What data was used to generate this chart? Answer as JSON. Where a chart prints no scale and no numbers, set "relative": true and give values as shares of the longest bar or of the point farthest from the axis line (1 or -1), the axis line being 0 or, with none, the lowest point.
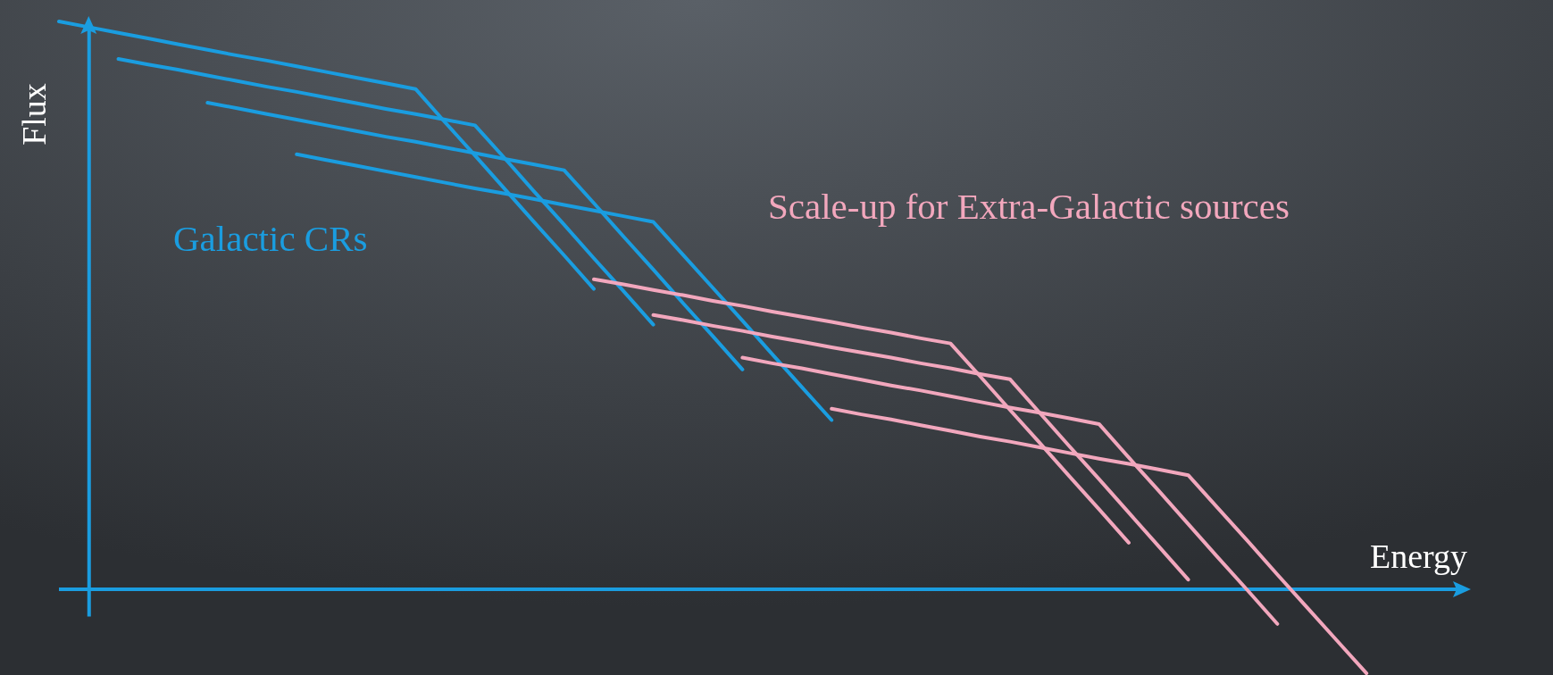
{
  "chart_data": {
    "type": "line",
    "relative": true,
    "xlabel": "Energy",
    "ylabel": "Flux",
    "marker": "none",
    "line_style": "solid",
    "ref_lines": [
      {
        "axis": "y",
        "value": 0,
        "color": "#1a9de0"
      }
    ],
    "categories": [
      null,
      null,
      null,
      null,
      null,
      null,
      null,
      null,
      null,
      null,
      null,
      null,
      null,
      null,
      null,
      null,
      null,
      null,
      null,
      null,
      null,
      null,
      null,
      null,
      null,
      null,
      null,
      null,
      null,
      null,
      null,
      null,
      null,
      null,
      null,
      null,
      null,
      null,
      null,
      null,
      null,
      null,
      null,
      null,
      null,
      null,
      null,
      null
    ],
    "series": [
      {
        "color": "#1a9de0",
        "values": [
          1.0,
          0.99,
          0.98,
          0.97,
          0.96,
          0.95,
          0.94,
          0.931,
          0.921,
          0.911,
          0.901,
          0.891,
          0.881,
          0.822,
          0.764,
          0.705,
          0.646,
          0.588,
          0.529,
          null,
          null,
          null,
          null,
          null,
          null,
          null,
          null,
          null,
          null,
          null,
          null,
          null,
          null,
          null,
          null,
          null,
          null,
          null,
          null,
          null,
          null,
          null,
          null,
          null,
          null,
          null,
          null,
          null
        ]
      },
      {
        "color": "#1a9de0",
        "values": [
          null,
          null,
          0.934,
          0.924,
          0.915,
          0.905,
          0.895,
          0.885,
          0.876,
          0.866,
          0.856,
          0.846,
          0.837,
          0.827,
          0.817,
          0.759,
          0.7,
          0.642,
          0.583,
          0.525,
          0.466,
          null,
          null,
          null,
          null,
          null,
          null,
          null,
          null,
          null,
          null,
          null,
          null,
          null,
          null,
          null,
          null,
          null,
          null,
          null,
          null,
          null,
          null,
          null,
          null,
          null,
          null,
          null
        ]
      },
      {
        "color": "#1a9de0",
        "values": [
          null,
          null,
          null,
          null,
          null,
          0.857,
          0.847,
          0.837,
          0.827,
          0.817,
          0.807,
          0.797,
          0.788,
          0.778,
          0.768,
          0.758,
          0.748,
          0.738,
          0.68,
          0.621,
          0.563,
          0.504,
          0.446,
          0.387,
          null,
          null,
          null,
          null,
          null,
          null,
          null,
          null,
          null,
          null,
          null,
          null,
          null,
          null,
          null,
          null,
          null,
          null,
          null,
          null,
          null,
          null,
          null,
          null
        ]
      },
      {
        "color": "#1a9de0",
        "values": [
          null,
          null,
          null,
          null,
          null,
          null,
          null,
          null,
          0.766,
          0.756,
          0.746,
          0.736,
          0.726,
          0.716,
          0.706,
          0.697,
          0.687,
          0.677,
          0.667,
          0.657,
          0.647,
          0.589,
          0.531,
          0.473,
          0.414,
          0.356,
          0.298,
          null,
          null,
          null,
          null,
          null,
          null,
          null,
          null,
          null,
          null,
          null,
          null,
          null,
          null,
          null,
          null,
          null,
          null,
          null,
          null,
          null
        ]
      },
      {
        "color": "#f2a7bd",
        "values": [
          null,
          null,
          null,
          null,
          null,
          null,
          null,
          null,
          null,
          null,
          null,
          null,
          null,
          null,
          null,
          null,
          null,
          null,
          0.546,
          0.537,
          0.527,
          0.518,
          0.508,
          0.499,
          0.489,
          0.48,
          0.471,
          0.461,
          0.452,
          0.442,
          0.433,
          0.375,
          0.316,
          0.258,
          0.199,
          0.141,
          0.082,
          null,
          null,
          null,
          null,
          null,
          null,
          null,
          null,
          null,
          null,
          null
        ]
      },
      {
        "color": "#f2a7bd",
        "values": [
          null,
          null,
          null,
          null,
          null,
          null,
          null,
          null,
          null,
          null,
          null,
          null,
          null,
          null,
          null,
          null,
          null,
          null,
          null,
          null,
          0.483,
          0.474,
          0.464,
          0.455,
          0.445,
          0.436,
          0.426,
          0.417,
          0.408,
          0.398,
          0.389,
          0.379,
          0.37,
          0.311,
          0.252,
          0.194,
          0.135,
          0.076,
          0.017,
          null,
          null,
          null,
          null,
          null,
          null,
          null,
          null,
          null
        ]
      },
      {
        "color": "#f2a7bd",
        "values": [
          null,
          null,
          null,
          null,
          null,
          null,
          null,
          null,
          null,
          null,
          null,
          null,
          null,
          null,
          null,
          null,
          null,
          null,
          null,
          null,
          null,
          null,
          null,
          0.408,
          0.398,
          0.389,
          0.379,
          0.369,
          0.359,
          0.35,
          0.34,
          0.33,
          0.32,
          0.311,
          0.301,
          0.291,
          0.232,
          0.174,
          0.115,
          0.056,
          -0.002,
          -0.061,
          null,
          null,
          null,
          null,
          null,
          null
        ]
      },
      {
        "color": "#f2a7bd",
        "values": [
          null,
          null,
          null,
          null,
          null,
          null,
          null,
          null,
          null,
          null,
          null,
          null,
          null,
          null,
          null,
          null,
          null,
          null,
          null,
          null,
          null,
          null,
          null,
          null,
          null,
          null,
          0.318,
          0.308,
          0.299,
          0.289,
          0.279,
          0.269,
          0.26,
          0.25,
          0.24,
          0.23,
          0.221,
          0.211,
          0.201,
          0.143,
          0.085,
          0.026,
          -0.032,
          -0.09,
          -0.148,
          null,
          null,
          null
        ]
      }
    ],
    "annotations": [
      "Galactic CRs",
      "Scale-up for Extra-Galactic sources"
    ]
  }
}
